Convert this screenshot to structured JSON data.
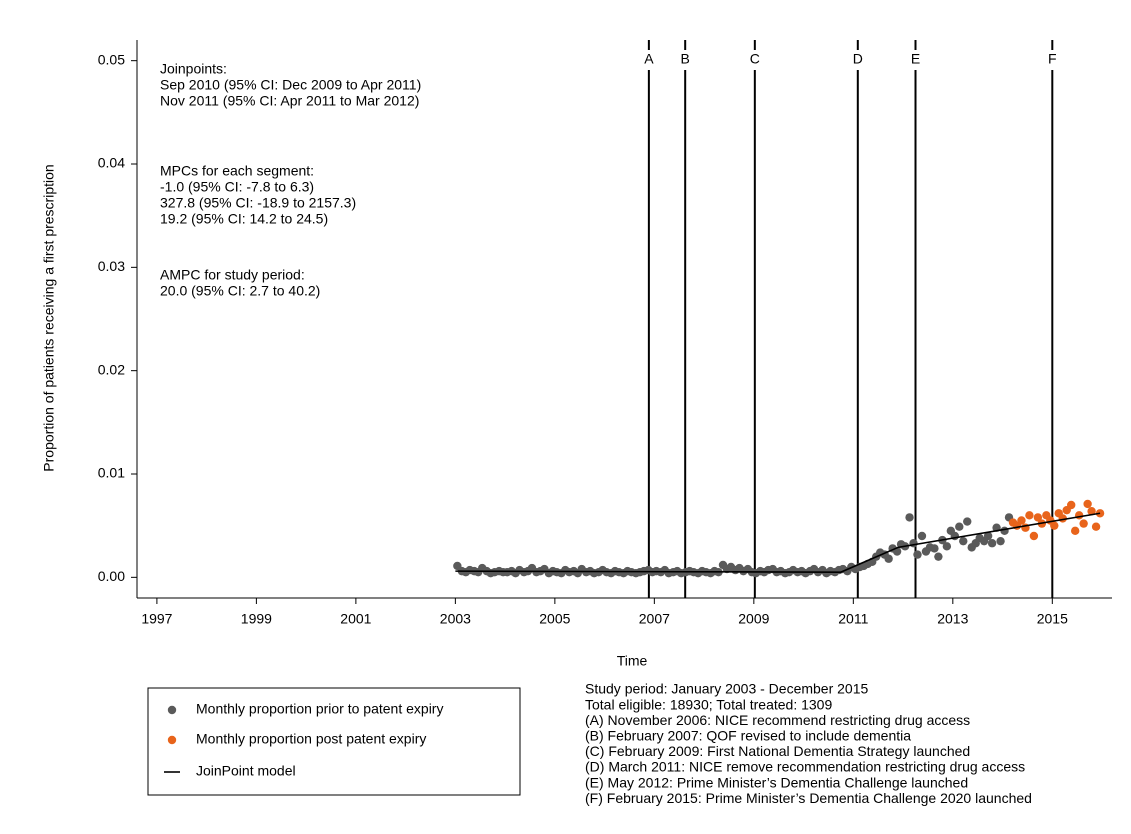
{
  "chart_data": {
    "type": "scatter",
    "xlabel": "Time",
    "ylabel": "Proportion of patients receiving a first prescription",
    "xlim": [
      1996.6,
      2016.2
    ],
    "xticks": [
      1997,
      1999,
      2001,
      2003,
      2005,
      2007,
      2009,
      2011,
      2013,
      2015
    ],
    "ylim": [
      -0.002,
      0.052
    ],
    "yticks": [
      {
        "value": 0,
        "label": "0.00"
      },
      0.01,
      0.02,
      0.03,
      0.04,
      0.05
    ],
    "grid": false,
    "events": [
      {
        "label": "A",
        "x": 2006.89
      },
      {
        "label": "B",
        "x": 2007.62
      },
      {
        "label": "C",
        "x": 2009.02
      },
      {
        "label": "D",
        "x": 2011.09
      },
      {
        "label": "E",
        "x": 2012.25
      },
      {
        "label": "F",
        "x": 2015.0
      }
    ],
    "annotations": [
      [
        "Joinpoints:",
        "Sep 2010 (95% CI: Dec 2009 to Apr 2011)",
        "Nov 2011 (95% CI: Apr 2011 to Mar 2012)"
      ],
      [
        "MPCs for each segment:",
        "-1.0 (95% CI: -7.8 to 6.3)",
        "327.8 (95% CI: -18.9 to 2157.3)",
        "19.2 (95% CI: 14.2 to 24.5)"
      ],
      [
        "AMPC for study period:",
        "20.0 (95% CI: 2.7 to 40.2)"
      ]
    ],
    "notes": [
      "Study period: January 2003 - December 2015",
      "Total eligible: 18930; Total treated: 1309",
      "(A) November 2006: NICE recommend restricting drug access",
      "(B) February 2007: QOF revised to include dementia",
      "(C) February 2009: First National Dementia Strategy launched",
      "(D) March 2011: NICE remove recommendation restricting drug access",
      "(E) May 2012: Prime Minister’s Dementia Challenge launched",
      "(F) February 2015: Prime Minister’s Dementia Challenge 2020 launched"
    ],
    "series": [
      {
        "name": "Monthly proportion prior to patent expiry",
        "color": "#5a5a5a",
        "kind": "markers",
        "x": [
          2003.04,
          2003.13,
          2003.21,
          2003.29,
          2003.38,
          2003.46,
          2003.54,
          2003.63,
          2003.71,
          2003.79,
          2003.88,
          2003.96,
          2004.04,
          2004.13,
          2004.21,
          2004.29,
          2004.38,
          2004.46,
          2004.54,
          2004.63,
          2004.71,
          2004.79,
          2004.88,
          2004.96,
          2005.04,
          2005.13,
          2005.21,
          2005.29,
          2005.38,
          2005.46,
          2005.54,
          2005.63,
          2005.71,
          2005.79,
          2005.88,
          2005.96,
          2006.04,
          2006.13,
          2006.21,
          2006.29,
          2006.38,
          2006.46,
          2006.54,
          2006.63,
          2006.71,
          2006.79,
          2006.88,
          2006.96,
          2007.04,
          2007.13,
          2007.21,
          2007.29,
          2007.38,
          2007.46,
          2007.54,
          2007.63,
          2007.71,
          2007.79,
          2007.88,
          2007.96,
          2008.04,
          2008.13,
          2008.21,
          2008.29,
          2008.38,
          2008.46,
          2008.54,
          2008.63,
          2008.71,
          2008.79,
          2008.88,
          2008.96,
          2009.04,
          2009.13,
          2009.21,
          2009.29,
          2009.38,
          2009.46,
          2009.54,
          2009.63,
          2009.71,
          2009.79,
          2009.88,
          2009.96,
          2010.04,
          2010.13,
          2010.21,
          2010.29,
          2010.38,
          2010.46,
          2010.54,
          2010.63,
          2010.71,
          2010.79,
          2010.88,
          2010.96,
          2011.04,
          2011.13,
          2011.21,
          2011.29,
          2011.38,
          2011.46,
          2011.54,
          2011.63,
          2011.71,
          2011.79,
          2011.88,
          2011.96,
          2012.04,
          2012.13,
          2012.21,
          2012.29,
          2012.38,
          2012.46,
          2012.54,
          2012.63,
          2012.71,
          2012.79,
          2012.88,
          2012.96,
          2013.04,
          2013.13,
          2013.21,
          2013.29,
          2013.38,
          2013.46,
          2013.54,
          2013.63,
          2013.71,
          2013.79,
          2013.88,
          2013.96,
          2014.04,
          2014.13
        ],
        "values": [
          0.0011,
          0.0006,
          0.0005,
          0.0007,
          0.0006,
          0.0005,
          0.0009,
          0.0006,
          0.0004,
          0.0005,
          0.0006,
          0.0005,
          0.0005,
          0.0006,
          0.0004,
          0.0007,
          0.0005,
          0.0006,
          0.0009,
          0.0005,
          0.0006,
          0.0008,
          0.0004,
          0.0006,
          0.0005,
          0.0004,
          0.0007,
          0.0005,
          0.0006,
          0.0004,
          0.0008,
          0.0005,
          0.0006,
          0.0004,
          0.0005,
          0.0007,
          0.0005,
          0.0004,
          0.0006,
          0.0005,
          0.0004,
          0.0006,
          0.0005,
          0.0004,
          0.0005,
          0.0006,
          0.0007,
          0.0005,
          0.0006,
          0.0005,
          0.0007,
          0.0004,
          0.0005,
          0.0006,
          0.0004,
          0.0005,
          0.0006,
          0.0005,
          0.0004,
          0.0006,
          0.0005,
          0.0004,
          0.0006,
          0.0005,
          0.0012,
          0.0008,
          0.001,
          0.0007,
          0.0009,
          0.0006,
          0.0008,
          0.0005,
          0.0004,
          0.0006,
          0.0005,
          0.0007,
          0.0008,
          0.0005,
          0.0006,
          0.0004,
          0.0005,
          0.0007,
          0.0005,
          0.0006,
          0.0004,
          0.0006,
          0.0008,
          0.0005,
          0.0007,
          0.0004,
          0.0006,
          0.0005,
          0.0007,
          0.0008,
          0.0006,
          0.001,
          0.0008,
          0.001,
          0.0011,
          0.0013,
          0.0015,
          0.002,
          0.0024,
          0.0022,
          0.0018,
          0.0028,
          0.0025,
          0.0032,
          0.003,
          0.0058,
          0.0033,
          0.0022,
          0.004,
          0.0025,
          0.0029,
          0.0028,
          0.002,
          0.0036,
          0.003,
          0.0045,
          0.004,
          0.0049,
          0.0035,
          0.0054,
          0.0029,
          0.0033,
          0.0038,
          0.0035,
          0.004,
          0.0033,
          0.0048,
          0.0035,
          0.0045,
          0.0058
        ]
      },
      {
        "name": "Monthly proportion post patent expiry",
        "color": "#e8641b",
        "kind": "markers",
        "x": [
          2014.21,
          2014.29,
          2014.38,
          2014.46,
          2014.54,
          2014.63,
          2014.71,
          2014.79,
          2014.88,
          2014.96,
          2015.04,
          2015.13,
          2015.21,
          2015.29,
          2015.38,
          2015.46,
          2015.54,
          2015.63,
          2015.71,
          2015.79,
          2015.88,
          2015.96
        ],
        "values": [
          0.0053,
          0.005,
          0.0055,
          0.0048,
          0.006,
          0.004,
          0.0058,
          0.0052,
          0.006,
          0.0055,
          0.005,
          0.0062,
          0.0057,
          0.0065,
          0.007,
          0.0045,
          0.006,
          0.0052,
          0.0071,
          0.0064,
          0.0049,
          0.0062
        ]
      },
      {
        "name": "JoinPoint model",
        "color": "#000000",
        "kind": "line",
        "x": [
          2003.0,
          2010.75,
          2011.9,
          2015.96
        ],
        "values": [
          0.0006,
          0.0005,
          0.0029,
          0.0062
        ]
      }
    ]
  }
}
